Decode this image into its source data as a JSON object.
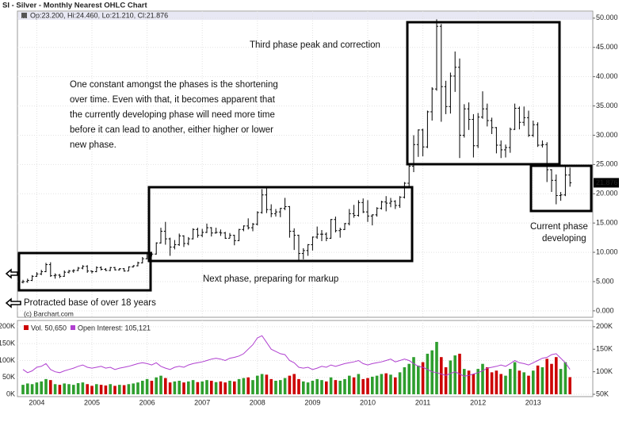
{
  "chart_data": [
    {
      "type": "ohlc",
      "title": "SI - Silver - Monthly Nearest OHLC Chart",
      "info": "Op:23.200, Hi:24.460, Lo:21.210, Cl:21.876",
      "last_label": "21.876",
      "source": "(c) Barchart.com",
      "color": "#000000",
      "grid": true,
      "ylim": [
        -1.1,
        51.2
      ],
      "yticks": [
        {
          "value": 0,
          "label": "0.000"
        },
        {
          "value": 5,
          "label": "5.000"
        },
        {
          "value": 10,
          "label": "10.000"
        },
        {
          "value": 15,
          "label": "15.000"
        },
        {
          "value": 20,
          "label": "20.000"
        },
        {
          "value": 25,
          "label": "25.000"
        },
        {
          "value": 30,
          "label": "30.000"
        },
        {
          "value": 35,
          "label": "35.000"
        },
        {
          "value": 40,
          "label": "40.000"
        },
        {
          "value": 45,
          "label": "45.000"
        },
        {
          "value": 50,
          "label": "50.000"
        }
      ],
      "annotations": [
        "Third phase peak and correction",
        "One constant amongst the phases is the shortening",
        "over time.  Even with that, it becomes apparent that",
        "the currently developing phase will need more time",
        "before it can lead to another, either higher or lower",
        "new phase.",
        "Current phase",
        "developing",
        "Next phase, preparing for markup",
        "Protracted base of over 18 years"
      ],
      "open": [
        4.9,
        5.0,
        5.2,
        5.9,
        6.3,
        6.7,
        7.9,
        6.0,
        6.1,
        5.9,
        6.6,
        6.8,
        6.9,
        7.3,
        7.6,
        6.8,
        6.7,
        7.4,
        7.1,
        6.9,
        7.4,
        7.0,
        7.2,
        6.8,
        7.5,
        7.7,
        8.2,
        8.9,
        9.8,
        9.7,
        11.6,
        13.6,
        12.3,
        10.9,
        11.3,
        12.8,
        11.5,
        12.3,
        13.9,
        12.9,
        13.4,
        14.2,
        13.3,
        13.4,
        13.3,
        12.4,
        12.9,
        12.0,
        13.9,
        14.5,
        14.2,
        14.8,
        16.8,
        19.8,
        17.3,
        16.6,
        16.9,
        17.5,
        17.8,
        13.6,
        12.9,
        9.8,
        10.3,
        11.3,
        12.6,
        13.1,
        13.1,
        12.4,
        15.6,
        13.7,
        13.9,
        14.9,
        16.6,
        16.3,
        18.5,
        16.9,
        16.2,
        16.4,
        17.5,
        18.6,
        18.4,
        18.7,
        18.0,
        19.4,
        21.8,
        24.7,
        28.4,
        30.9,
        28.0,
        34.0,
        37.9,
        48.6,
        38.3,
        34.9,
        40.1,
        41.6,
        30.0,
        34.5,
        32.7,
        28.2,
        33.1,
        34.5,
        32.5,
        31.3,
        28.3,
        27.5,
        27.9,
        31.0,
        34.6,
        32.2,
        33.0,
        30.0,
        31.8,
        28.3,
        28.4,
        24.1,
        22.3,
        19.7,
        19.8,
        23.2
      ],
      "high": [
        5.3,
        5.5,
        6.1,
        6.6,
        7.0,
        8.2,
        8.3,
        6.4,
        6.3,
        6.9,
        7.0,
        7.1,
        7.5,
        7.8,
        7.8,
        6.9,
        7.6,
        7.6,
        7.3,
        7.5,
        7.5,
        7.3,
        7.3,
        7.6,
        7.8,
        8.4,
        9.2,
        10.0,
        10.1,
        11.7,
        14.2,
        15.2,
        12.5,
        12.1,
        13.2,
        12.9,
        12.6,
        14.1,
        14.2,
        14.0,
        14.9,
        14.3,
        14.2,
        13.9,
        13.5,
        13.3,
        13.0,
        14.0,
        14.6,
        15.8,
        15.0,
        17.0,
        20.8,
        21.2,
        18.2,
        17.4,
        17.6,
        19.3,
        17.9,
        14.1,
        13.0,
        10.7,
        11.4,
        12.7,
        14.4,
        13.8,
        13.4,
        15.7,
        16.1,
        14.2,
        15.0,
        17.4,
        18.1,
        18.9,
        19.2,
        18.9,
        16.5,
        17.7,
        18.8,
        19.6,
        19.3,
        18.9,
        19.6,
        22.0,
        24.9,
        30.0,
        31.0,
        31.1,
        34.2,
        38.2,
        49.8,
        49.0,
        39.3,
        40.7,
        44.3,
        43.1,
        35.3,
        35.6,
        33.6,
        33.8,
        37.5,
        35.4,
        33.0,
        31.4,
        29.1,
        28.4,
        31.3,
        35.4,
        34.9,
        34.9,
        34.2,
        32.5,
        32.2,
        29.1,
        28.8,
        24.2,
        23.3,
        20.3,
        24.8,
        24.46
      ],
      "low": [
        4.7,
        4.8,
        5.1,
        5.8,
        6.1,
        6.6,
        5.8,
        5.5,
        5.6,
        5.8,
        6.4,
        6.5,
        6.8,
        7.1,
        6.5,
        6.4,
        6.6,
        6.9,
        6.8,
        6.8,
        6.9,
        6.9,
        6.7,
        6.8,
        7.4,
        7.6,
        8.1,
        8.8,
        9.3,
        9.6,
        11.5,
        11.3,
        9.4,
        10.5,
        11.1,
        10.9,
        11.2,
        12.2,
        12.5,
        12.6,
        13.3,
        12.7,
        13.2,
        12.8,
        12.3,
        12.4,
        11.2,
        11.9,
        13.6,
        13.9,
        13.6,
        14.6,
        16.6,
        16.7,
        16.0,
        16.1,
        16.0,
        17.2,
        12.5,
        10.4,
        8.4,
        8.8,
        9.4,
        10.3,
        12.3,
        11.9,
        11.9,
        12.3,
        13.4,
        12.5,
        13.8,
        14.6,
        15.9,
        16.1,
        16.7,
        15.2,
        14.6,
        16.1,
        17.3,
        17.0,
        17.7,
        17.4,
        17.6,
        19.2,
        21.2,
        23.7,
        26.3,
        26.4,
        27.8,
        32.5,
        37.6,
        32.3,
        33.6,
        33.7,
        37.4,
        26.1,
        29.6,
        30.9,
        26.2,
        27.8,
        32.8,
        31.5,
        30.2,
        26.9,
        26.1,
        26.2,
        27.0,
        30.9,
        31.0,
        31.6,
        29.7,
        29.7,
        28.0,
        27.9,
        22.0,
        20.3,
        18.2,
        18.8,
        19.6,
        21.21
      ],
      "close": [
        5.0,
        5.2,
        5.9,
        6.3,
        6.7,
        7.9,
        6.0,
        6.1,
        5.9,
        6.6,
        6.8,
        6.9,
        7.3,
        7.6,
        6.8,
        6.7,
        7.4,
        7.1,
        6.9,
        7.4,
        7.0,
        7.2,
        6.8,
        7.5,
        7.7,
        8.2,
        8.9,
        9.8,
        9.7,
        11.6,
        13.6,
        12.3,
        10.9,
        11.3,
        12.8,
        11.5,
        12.3,
        13.9,
        12.9,
        13.4,
        14.2,
        13.3,
        13.4,
        13.3,
        12.4,
        12.9,
        12.0,
        13.9,
        14.5,
        14.2,
        14.8,
        16.8,
        19.8,
        17.3,
        16.6,
        16.9,
        17.5,
        17.8,
        13.6,
        12.9,
        9.8,
        10.3,
        11.3,
        12.6,
        13.1,
        13.1,
        12.4,
        15.6,
        13.7,
        13.9,
        14.9,
        16.6,
        16.3,
        18.5,
        16.9,
        16.2,
        16.4,
        17.5,
        18.6,
        18.4,
        18.7,
        18.0,
        19.4,
        21.8,
        24.7,
        28.4,
        30.9,
        28.0,
        34.0,
        37.9,
        48.6,
        38.3,
        34.9,
        40.1,
        41.6,
        30.0,
        34.5,
        32.7,
        28.2,
        33.1,
        34.5,
        32.5,
        31.3,
        28.3,
        27.5,
        27.9,
        31.0,
        34.6,
        32.2,
        33.0,
        30.0,
        31.8,
        28.3,
        28.4,
        24.1,
        22.3,
        19.7,
        19.8,
        23.2,
        21.876
      ]
    },
    {
      "type": "bar_line",
      "categories": [
        null,
        null,
        null,
        "2004",
        null,
        null,
        null,
        null,
        null,
        null,
        null,
        null,
        null,
        null,
        null,
        "2005",
        null,
        null,
        null,
        null,
        null,
        null,
        null,
        null,
        null,
        null,
        null,
        "2006",
        null,
        null,
        null,
        null,
        null,
        null,
        null,
        null,
        null,
        null,
        null,
        "2007",
        null,
        null,
        null,
        null,
        null,
        null,
        null,
        null,
        null,
        null,
        null,
        "2008",
        null,
        null,
        null,
        null,
        null,
        null,
        null,
        null,
        null,
        null,
        null,
        "2009",
        null,
        null,
        null,
        null,
        null,
        null,
        null,
        null,
        null,
        null,
        null,
        "2010",
        null,
        null,
        null,
        null,
        null,
        null,
        null,
        null,
        null,
        null,
        null,
        "2011",
        null,
        null,
        null,
        null,
        null,
        null,
        null,
        null,
        null,
        null,
        null,
        "2012",
        null,
        null,
        null,
        null,
        null,
        null,
        null,
        null,
        null,
        null,
        null,
        "2013",
        null,
        null,
        null,
        null,
        null,
        null,
        null,
        null
      ],
      "up_color": "#2e9e2e",
      "down_color": "#cc0000",
      "grid": true,
      "ylim": [
        -6900,
        218400
      ],
      "yticks": [
        {
          "value": 0,
          "label": "0K"
        },
        {
          "value": 50000,
          "label": "50K"
        },
        {
          "value": 100000,
          "label": "100K"
        },
        {
          "value": 150000,
          "label": "150K"
        },
        {
          "value": 200000,
          "label": "200K"
        }
      ],
      "y2lim": [
        44830,
        213800
      ],
      "y2ticks": [
        {
          "value": 50000,
          "label": "50K"
        },
        {
          "value": 100000,
          "label": "100K"
        },
        {
          "value": 150000,
          "label": "150K"
        },
        {
          "value": 200000,
          "label": "200K"
        }
      ],
      "series": [
        {
          "name": "Vol. 50,650",
          "color": "#cc0000",
          "values": [
            28000,
            32000,
            30000,
            35000,
            38000,
            45000,
            42000,
            30000,
            28000,
            32000,
            30000,
            28000,
            33000,
            35000,
            30000,
            25000,
            30000,
            28000,
            26000,
            30000,
            25000,
            28000,
            27000,
            30000,
            32000,
            35000,
            40000,
            45000,
            40000,
            50000,
            55000,
            48000,
            35000,
            38000,
            40000,
            35000,
            38000,
            42000,
            36000,
            38000,
            42000,
            40000,
            36000,
            38000,
            35000,
            40000,
            38000,
            45000,
            48000,
            50000,
            42000,
            55000,
            60000,
            58000,
            45000,
            40000,
            42000,
            48000,
            55000,
            60000,
            45000,
            38000,
            35000,
            40000,
            45000,
            42000,
            38000,
            50000,
            42000,
            40000,
            45000,
            55000,
            50000,
            60000,
            45000,
            48000,
            52000,
            55000,
            60000,
            62000,
            58000,
            50000,
            65000,
            80000,
            90000,
            110000,
            85000,
            95000,
            120000,
            130000,
            155000,
            110000,
            80000,
            100000,
            115000,
            120000,
            75000,
            70000,
            60000,
            75000,
            90000,
            80000,
            65000,
            70000,
            60000,
            55000,
            75000,
            95000,
            70000,
            65000,
            55000,
            70000,
            85000,
            80000,
            105000,
            90000,
            110000,
            75000,
            95000,
            50650
          ]
        },
        {
          "name": "Open Interest: 105,121",
          "color": "#b040d0",
          "axis": "y2",
          "values": [
            105000,
            98000,
            102000,
            110000,
            112000,
            118000,
            105000,
            100000,
            98000,
            102000,
            105000,
            108000,
            112000,
            115000,
            110000,
            108000,
            110000,
            112000,
            108000,
            110000,
            105000,
            108000,
            110000,
            112000,
            115000,
            118000,
            120000,
            118000,
            115000,
            120000,
            112000,
            108000,
            105000,
            110000,
            112000,
            110000,
            115000,
            118000,
            120000,
            122000,
            125000,
            128000,
            130000,
            128000,
            125000,
            130000,
            132000,
            135000,
            140000,
            150000,
            160000,
            175000,
            180000,
            165000,
            150000,
            145000,
            140000,
            138000,
            125000,
            120000,
            110000,
            108000,
            110000,
            105000,
            108000,
            112000,
            110000,
            115000,
            112000,
            115000,
            118000,
            120000,
            122000,
            125000,
            118000,
            115000,
            118000,
            120000,
            122000,
            125000,
            128000,
            122000,
            125000,
            128000,
            125000,
            118000,
            112000,
            110000,
            105000,
            100000,
            98000,
            95000,
            92000,
            96000,
            100000,
            95000,
            90000,
            92000,
            95000,
            98000,
            102000,
            108000,
            110000,
            112000,
            115000,
            112000,
            118000,
            125000,
            120000,
            118000,
            115000,
            120000,
            125000,
            130000,
            132000,
            138000,
            140000,
            130000,
            120000,
            105121
          ]
        }
      ]
    }
  ]
}
